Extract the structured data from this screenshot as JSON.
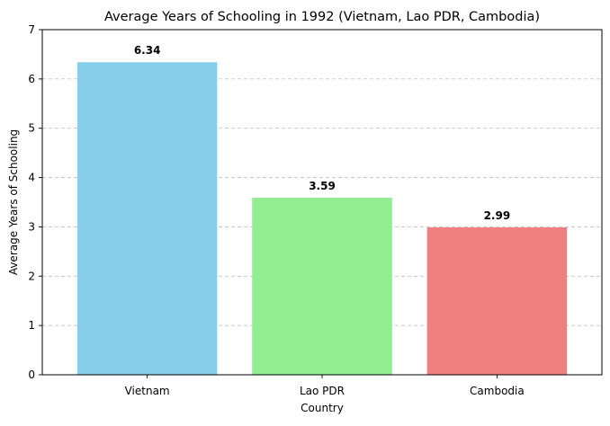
{
  "chart_data": {
    "type": "bar",
    "title": "Average Years of Schooling in 1992 (Vietnam, Lao PDR, Cambodia)",
    "xlabel": "Country",
    "ylabel": "Average Years of Schooling",
    "categories": [
      "Vietnam",
      "Lao PDR",
      "Cambodia"
    ],
    "values": [
      6.34,
      3.59,
      2.99
    ],
    "value_labels": [
      "6.34",
      "3.59",
      "2.99"
    ],
    "colors": [
      "#87ceeb",
      "#90ee90",
      "#f08080"
    ],
    "ylim": [
      0,
      7
    ],
    "yticks": [
      0,
      1,
      2,
      3,
      4,
      5,
      6,
      7
    ],
    "ytick_labels": [
      "0",
      "1",
      "2",
      "3",
      "4",
      "5",
      "6",
      "7"
    ],
    "grid": "y-axis dashed",
    "legend": "none"
  }
}
